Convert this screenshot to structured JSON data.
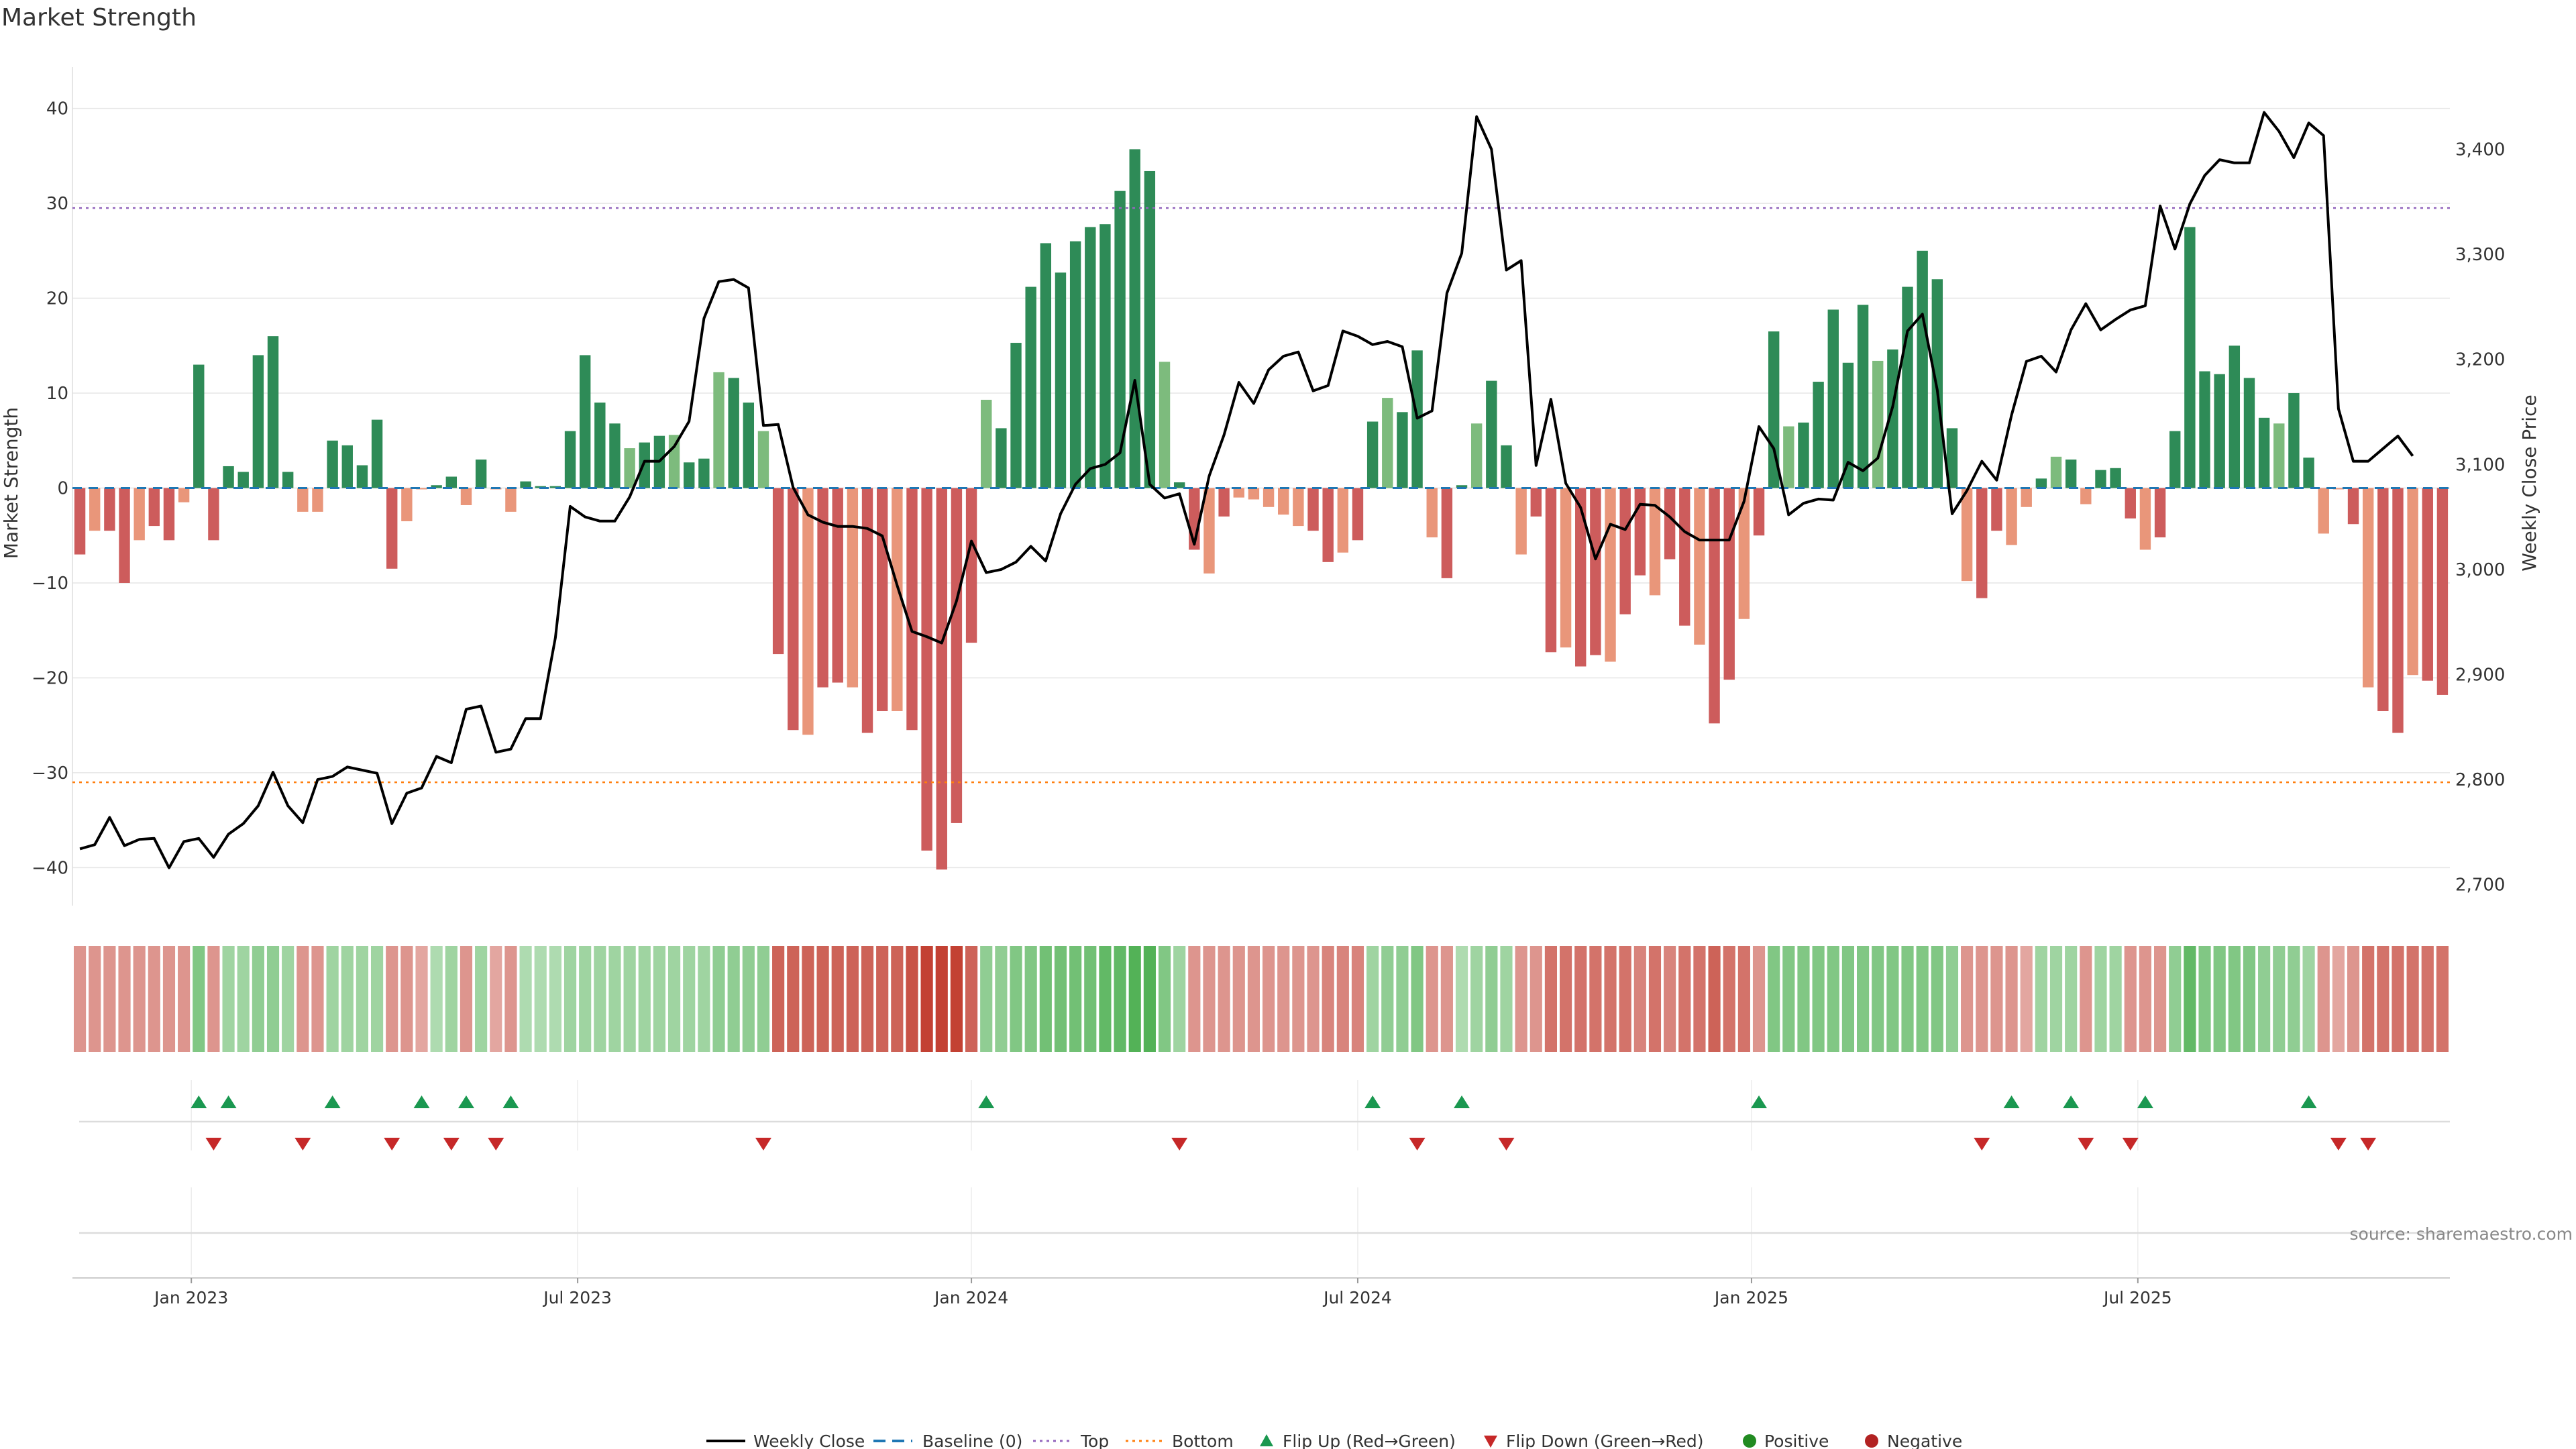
{
  "chart_data": {
    "type": "bar",
    "title": "Market Strength",
    "ylabel": "Market Strength",
    "y2label": "Weekly Close Price",
    "ylim": [
      -44,
      44
    ],
    "y2lim": [
      2680,
      3475
    ],
    "yticks": [
      40,
      30,
      20,
      10,
      0,
      -10,
      -20,
      -30,
      -40
    ],
    "y2ticks": [
      3400,
      3300,
      3200,
      3100,
      3000,
      2900,
      2800,
      2700
    ],
    "y2tick_labels": [
      "3,400",
      "3,300",
      "3,200",
      "3,100",
      "3,000",
      "2,900",
      "2,800",
      "2,700"
    ],
    "x_ticks": [
      {
        "label": "Jan 2023",
        "week": 8
      },
      {
        "label": "Jul 2023",
        "week": 34
      },
      {
        "label": "Jan 2024",
        "week": 60.5
      },
      {
        "label": "Jul 2024",
        "week": 86.5
      },
      {
        "label": "Jan 2025",
        "week": 113
      },
      {
        "label": "Jul 2025",
        "week": 139
      }
    ],
    "top_line": 29.5,
    "bottom_line": -31,
    "grid": true,
    "colors": {
      "positive_strong": "#2e8b57",
      "positive_light": "#7dbb7d",
      "negative_strong": "#cd5c5c",
      "negative_light": "#e9967a",
      "price": "#000000",
      "baseline": "#1f77b4",
      "top": "#9467bd",
      "bottom": "#ff7f0e",
      "flip_up": "#1a9850",
      "flip_down": "#c62828",
      "positive_dot": "#228b22",
      "negative_dot": "#b22222"
    },
    "strength": [
      -7,
      -4.5,
      -4.5,
      -10,
      -5.5,
      -4,
      -5.5,
      -1.5,
      13,
      -5.5,
      2.3,
      1.7,
      14,
      16,
      1.7,
      -2.5,
      -2.5,
      5,
      4.5,
      2.4,
      7.2,
      -8.5,
      -3.5,
      -0.1,
      0.3,
      1.2,
      -1.8,
      3,
      -0.1,
      -2.5,
      0.7,
      0.2,
      0.2,
      6,
      14,
      9,
      6.8,
      4.2,
      4.8,
      5.5,
      5.6,
      2.7,
      3.1,
      12.2,
      11.6,
      9,
      6,
      -17.5,
      -25.5,
      -26,
      -21,
      -20.5,
      -21,
      -25.8,
      -23.5,
      -23.5,
      -25.5,
      -38.2,
      -40.2,
      -35.3,
      -16.3,
      9.3,
      6.3,
      15.3,
      21.2,
      25.8,
      22.7,
      26,
      27.5,
      27.8,
      31.3,
      35.7,
      33.4,
      13.3,
      0.6,
      -6.5,
      -9,
      -3,
      -1,
      -1.2,
      -2,
      -2.8,
      -4,
      -4.5,
      -7.8,
      -6.8,
      -5.5,
      7,
      9.5,
      8,
      14.5,
      -5.2,
      -9.5,
      0.3,
      6.8,
      11.3,
      4.5,
      -7,
      -3,
      -17.3,
      -16.8,
      -18.8,
      -17.6,
      -18.3,
      -13.3,
      -9.2,
      -11.3,
      -7.5,
      -14.5,
      -16.5,
      -24.8,
      -20.2,
      -13.8,
      -5,
      16.5,
      6.5,
      6.9,
      11.2,
      18.8,
      13.2,
      19.3,
      13.4,
      14.6,
      21.2,
      25,
      22,
      6.3,
      -9.8,
      -11.6,
      -4.5,
      -6,
      -2,
      1,
      3.3,
      3,
      -1.7,
      1.9,
      2.1,
      -3.2,
      -6.5,
      -5.2,
      6,
      27.5,
      12.3,
      12,
      15,
      11.6,
      7.4,
      6.8,
      10,
      3.2,
      -4.8,
      -0.1,
      -3.8,
      -21,
      -23.5,
      -25.8,
      -19.7,
      -20.3,
      -21.8
    ],
    "price": [
      2734,
      2738,
      2764,
      2737,
      2743,
      2744,
      2716,
      2741,
      2744,
      2726,
      2748,
      2758,
      2775,
      2807,
      2775,
      2759,
      2800,
      2803,
      2812,
      2809,
      2806,
      2758,
      2787,
      2792,
      2822,
      2816,
      2867,
      2870,
      2826,
      2829,
      2858,
      2858,
      2935,
      3060,
      3050,
      3046,
      3046,
      3069,
      3103,
      3103,
      3117,
      3141,
      3239,
      3274,
      3276,
      3268,
      3137,
      3138,
      3078,
      3052,
      3045,
      3041,
      3041,
      3039,
      3032,
      2985,
      2941,
      2936,
      2930,
      2970,
      3027,
      2997,
      3000,
      3007,
      3022,
      3008,
      3053,
      3081,
      3096,
      3100,
      3111,
      3180,
      3081,
      3068,
      3072,
      3024,
      3089,
      3128,
      3178,
      3158,
      3190,
      3203,
      3207,
      3170,
      3175,
      3227,
      3222,
      3214,
      3217,
      3212,
      3144,
      3151,
      3263,
      3301,
      3431,
      3400,
      3285,
      3294,
      3099,
      3162,
      3082,
      3059,
      3010,
      3043,
      3038,
      3062,
      3061,
      3050,
      3036,
      3028,
      3028,
      3028,
      3065,
      3136,
      3115,
      3052,
      3063,
      3067,
      3066,
      3102,
      3094,
      3106,
      3155,
      3227,
      3243,
      3171,
      3053,
      3075,
      3103,
      3085,
      3147,
      3198,
      3203,
      3188,
      3228,
      3253,
      3228,
      3238,
      3247,
      3251,
      3346,
      3305,
      3348,
      3375,
      3390,
      3387,
      3387,
      3435,
      3417,
      3392,
      3425,
      3413,
      3153,
      3103,
      3103,
      3115,
      3127,
      3108
    ],
    "heat_values": [
      -0.3,
      -0.3,
      -0.3,
      -0.3,
      -0.3,
      -0.3,
      -0.3,
      -0.3,
      0.5,
      -0.3,
      0.3,
      0.3,
      0.4,
      0.4,
      0.3,
      -0.3,
      -0.3,
      0.3,
      0.3,
      0.3,
      0.3,
      -0.3,
      -0.3,
      -0.2,
      0.2,
      0.3,
      -0.3,
      0.3,
      -0.2,
      -0.3,
      0.2,
      0.2,
      0.2,
      0.3,
      0.3,
      0.3,
      0.3,
      0.3,
      0.3,
      0.3,
      0.3,
      0.3,
      0.3,
      0.4,
      0.4,
      0.4,
      0.4,
      -0.6,
      -0.6,
      -0.6,
      -0.6,
      -0.6,
      -0.6,
      -0.6,
      -0.6,
      -0.6,
      -0.7,
      -0.8,
      -0.8,
      -0.8,
      -0.6,
      0.4,
      0.4,
      0.5,
      0.5,
      0.6,
      0.6,
      0.6,
      0.6,
      0.7,
      0.7,
      0.8,
      0.8,
      0.5,
      0.3,
      -0.3,
      -0.3,
      -0.3,
      -0.3,
      -0.3,
      -0.3,
      -0.3,
      -0.3,
      -0.3,
      -0.4,
      -0.4,
      -0.4,
      0.3,
      0.4,
      0.4,
      0.5,
      -0.3,
      -0.3,
      0.2,
      0.3,
      0.4,
      0.3,
      -0.3,
      -0.3,
      -0.5,
      -0.5,
      -0.5,
      -0.5,
      -0.5,
      -0.5,
      -0.4,
      -0.5,
      -0.4,
      -0.5,
      -0.5,
      -0.6,
      -0.5,
      -0.5,
      -0.3,
      0.5,
      0.5,
      0.5,
      0.5,
      0.5,
      0.5,
      0.5,
      0.5,
      0.5,
      0.5,
      0.5,
      0.5,
      0.4,
      -0.3,
      -0.3,
      -0.3,
      -0.3,
      -0.2,
      0.3,
      0.3,
      0.3,
      -0.3,
      0.3,
      0.3,
      -0.3,
      -0.3,
      -0.3,
      0.4,
      0.7,
      0.5,
      0.5,
      0.5,
      0.5,
      0.4,
      0.4,
      0.4,
      0.3,
      -0.3,
      -0.2,
      -0.3,
      -0.5,
      -0.5,
      -0.5,
      -0.5,
      -0.5,
      -0.5
    ],
    "flip_up_weeks": [
      8,
      10,
      17,
      23,
      26,
      29,
      61,
      87,
      93,
      113,
      130,
      134,
      139,
      150
    ],
    "flip_down_weeks": [
      9,
      15,
      21,
      25,
      28,
      46,
      74,
      90,
      96,
      128,
      135,
      138,
      152,
      154
    ],
    "legend": {
      "weekly_close": "Weekly Close",
      "baseline": "Baseline (0)",
      "top": "Top",
      "bottom": "Bottom",
      "flip_up": "Flip Up (Red→Green)",
      "flip_down": "Flip Down (Green→Red)",
      "positive": "Positive",
      "negative": "Negative"
    },
    "source": "source: sharemaestro.com"
  }
}
